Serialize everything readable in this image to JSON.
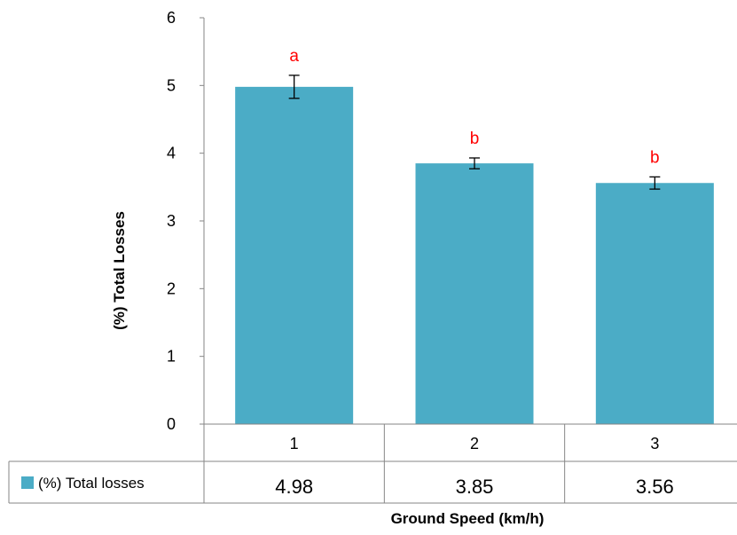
{
  "chart_data": {
    "type": "bar",
    "categories": [
      "1",
      "2",
      "3"
    ],
    "series": [
      {
        "name": "(%) Total losses",
        "values": [
          4.98,
          3.85,
          3.56
        ],
        "errors": [
          0.17,
          0.08,
          0.09
        ],
        "color": "#4BACC6"
      }
    ],
    "value_labels": [
      "4.98",
      "3.85",
      "3.56"
    ],
    "significance_letters": [
      "a",
      "b",
      "b"
    ],
    "significance_color": "#FF0000",
    "ylabel": "(%) Total Losses",
    "xlabel": "Ground Speed (km/h)",
    "ylim": [
      0,
      6
    ],
    "yticks": [
      "0",
      "1",
      "2",
      "3",
      "4",
      "5",
      "6"
    ],
    "grid": false,
    "legend": "data-table-left"
  }
}
